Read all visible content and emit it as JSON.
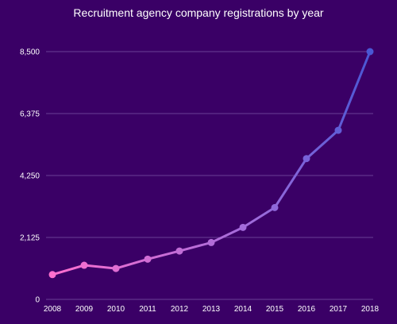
{
  "chart_data": {
    "type": "line",
    "title": "Recruitment agency company registrations by year",
    "xlabel": "",
    "ylabel": "",
    "x": [
      "2008",
      "2009",
      "2010",
      "2011",
      "2012",
      "2013",
      "2014",
      "2015",
      "2016",
      "2017",
      "2018"
    ],
    "series": [
      {
        "values": [
          850,
          1170,
          1060,
          1380,
          1660,
          1950,
          2470,
          3150,
          4830,
          5800,
          8500
        ]
      }
    ],
    "ylim": [
      0,
      8500
    ],
    "yticks": [
      0,
      2125,
      4250,
      6375,
      8500
    ],
    "ytick_labels": [
      "0",
      "2,125",
      "4,250",
      "6,375",
      "8,500"
    ],
    "grid": true,
    "legend": "none",
    "colors": {
      "background": "#3a0066",
      "grid": "#6a3f96",
      "line_start": "#ff6fcf",
      "line_mid": "#9b6bdb",
      "line_end": "#4a57d4",
      "text": "#ffffff"
    }
  }
}
